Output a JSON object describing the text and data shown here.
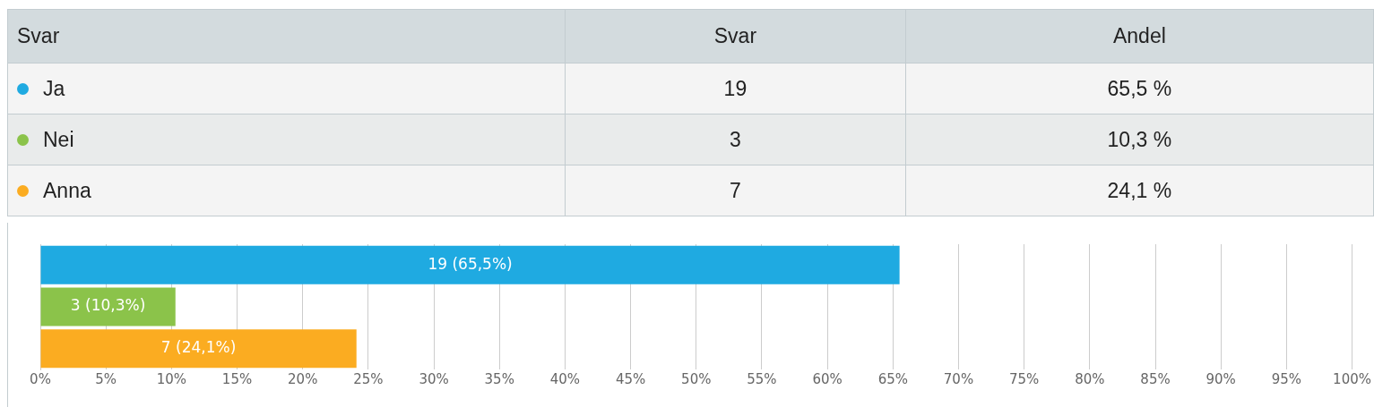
{
  "chart_data": [
    {
      "type": "other",
      "annotations": [
        "Svar",
        "Svar",
        "Andel",
        "Ja",
        "19",
        "65,5 %",
        "Nei",
        "3",
        "10,3 %",
        "Anna",
        "7",
        "24,1 %"
      ]
    },
    {
      "type": "bar",
      "orientation": "horizontal",
      "categories": [
        null,
        null,
        null
      ],
      "values": [
        65.5,
        10.3,
        24.1
      ],
      "colors": [
        "#1faae1",
        "#8bc34a",
        "#fbac21"
      ],
      "value_labels": [
        "19 (65,5%)",
        "3 (10,3%)",
        "7 (24,1%)"
      ],
      "xlim": [
        0,
        100
      ],
      "xticks": [
        {
          "value": 0,
          "label": "0%"
        },
        {
          "value": 5,
          "label": "5%"
        },
        {
          "value": 10,
          "label": "10%"
        },
        {
          "value": 15,
          "label": "15%"
        },
        {
          "value": 20,
          "label": "20%"
        },
        {
          "value": 25,
          "label": "25%"
        },
        {
          "value": 30,
          "label": "30%"
        },
        {
          "value": 35,
          "label": "35%"
        },
        {
          "value": 40,
          "label": "40%"
        },
        {
          "value": 45,
          "label": "45%"
        },
        {
          "value": 50,
          "label": "50%"
        },
        {
          "value": 55,
          "label": "55%"
        },
        {
          "value": 60,
          "label": "60%"
        },
        {
          "value": 65,
          "label": "65%"
        },
        {
          "value": 70,
          "label": "70%"
        },
        {
          "value": 75,
          "label": "75%"
        },
        {
          "value": 80,
          "label": "80%"
        },
        {
          "value": 85,
          "label": "85%"
        },
        {
          "value": 90,
          "label": "90%"
        },
        {
          "value": 95,
          "label": "95%"
        },
        {
          "value": 100,
          "label": "100%"
        }
      ],
      "grid": "x",
      "tick_labels": "x"
    }
  ]
}
